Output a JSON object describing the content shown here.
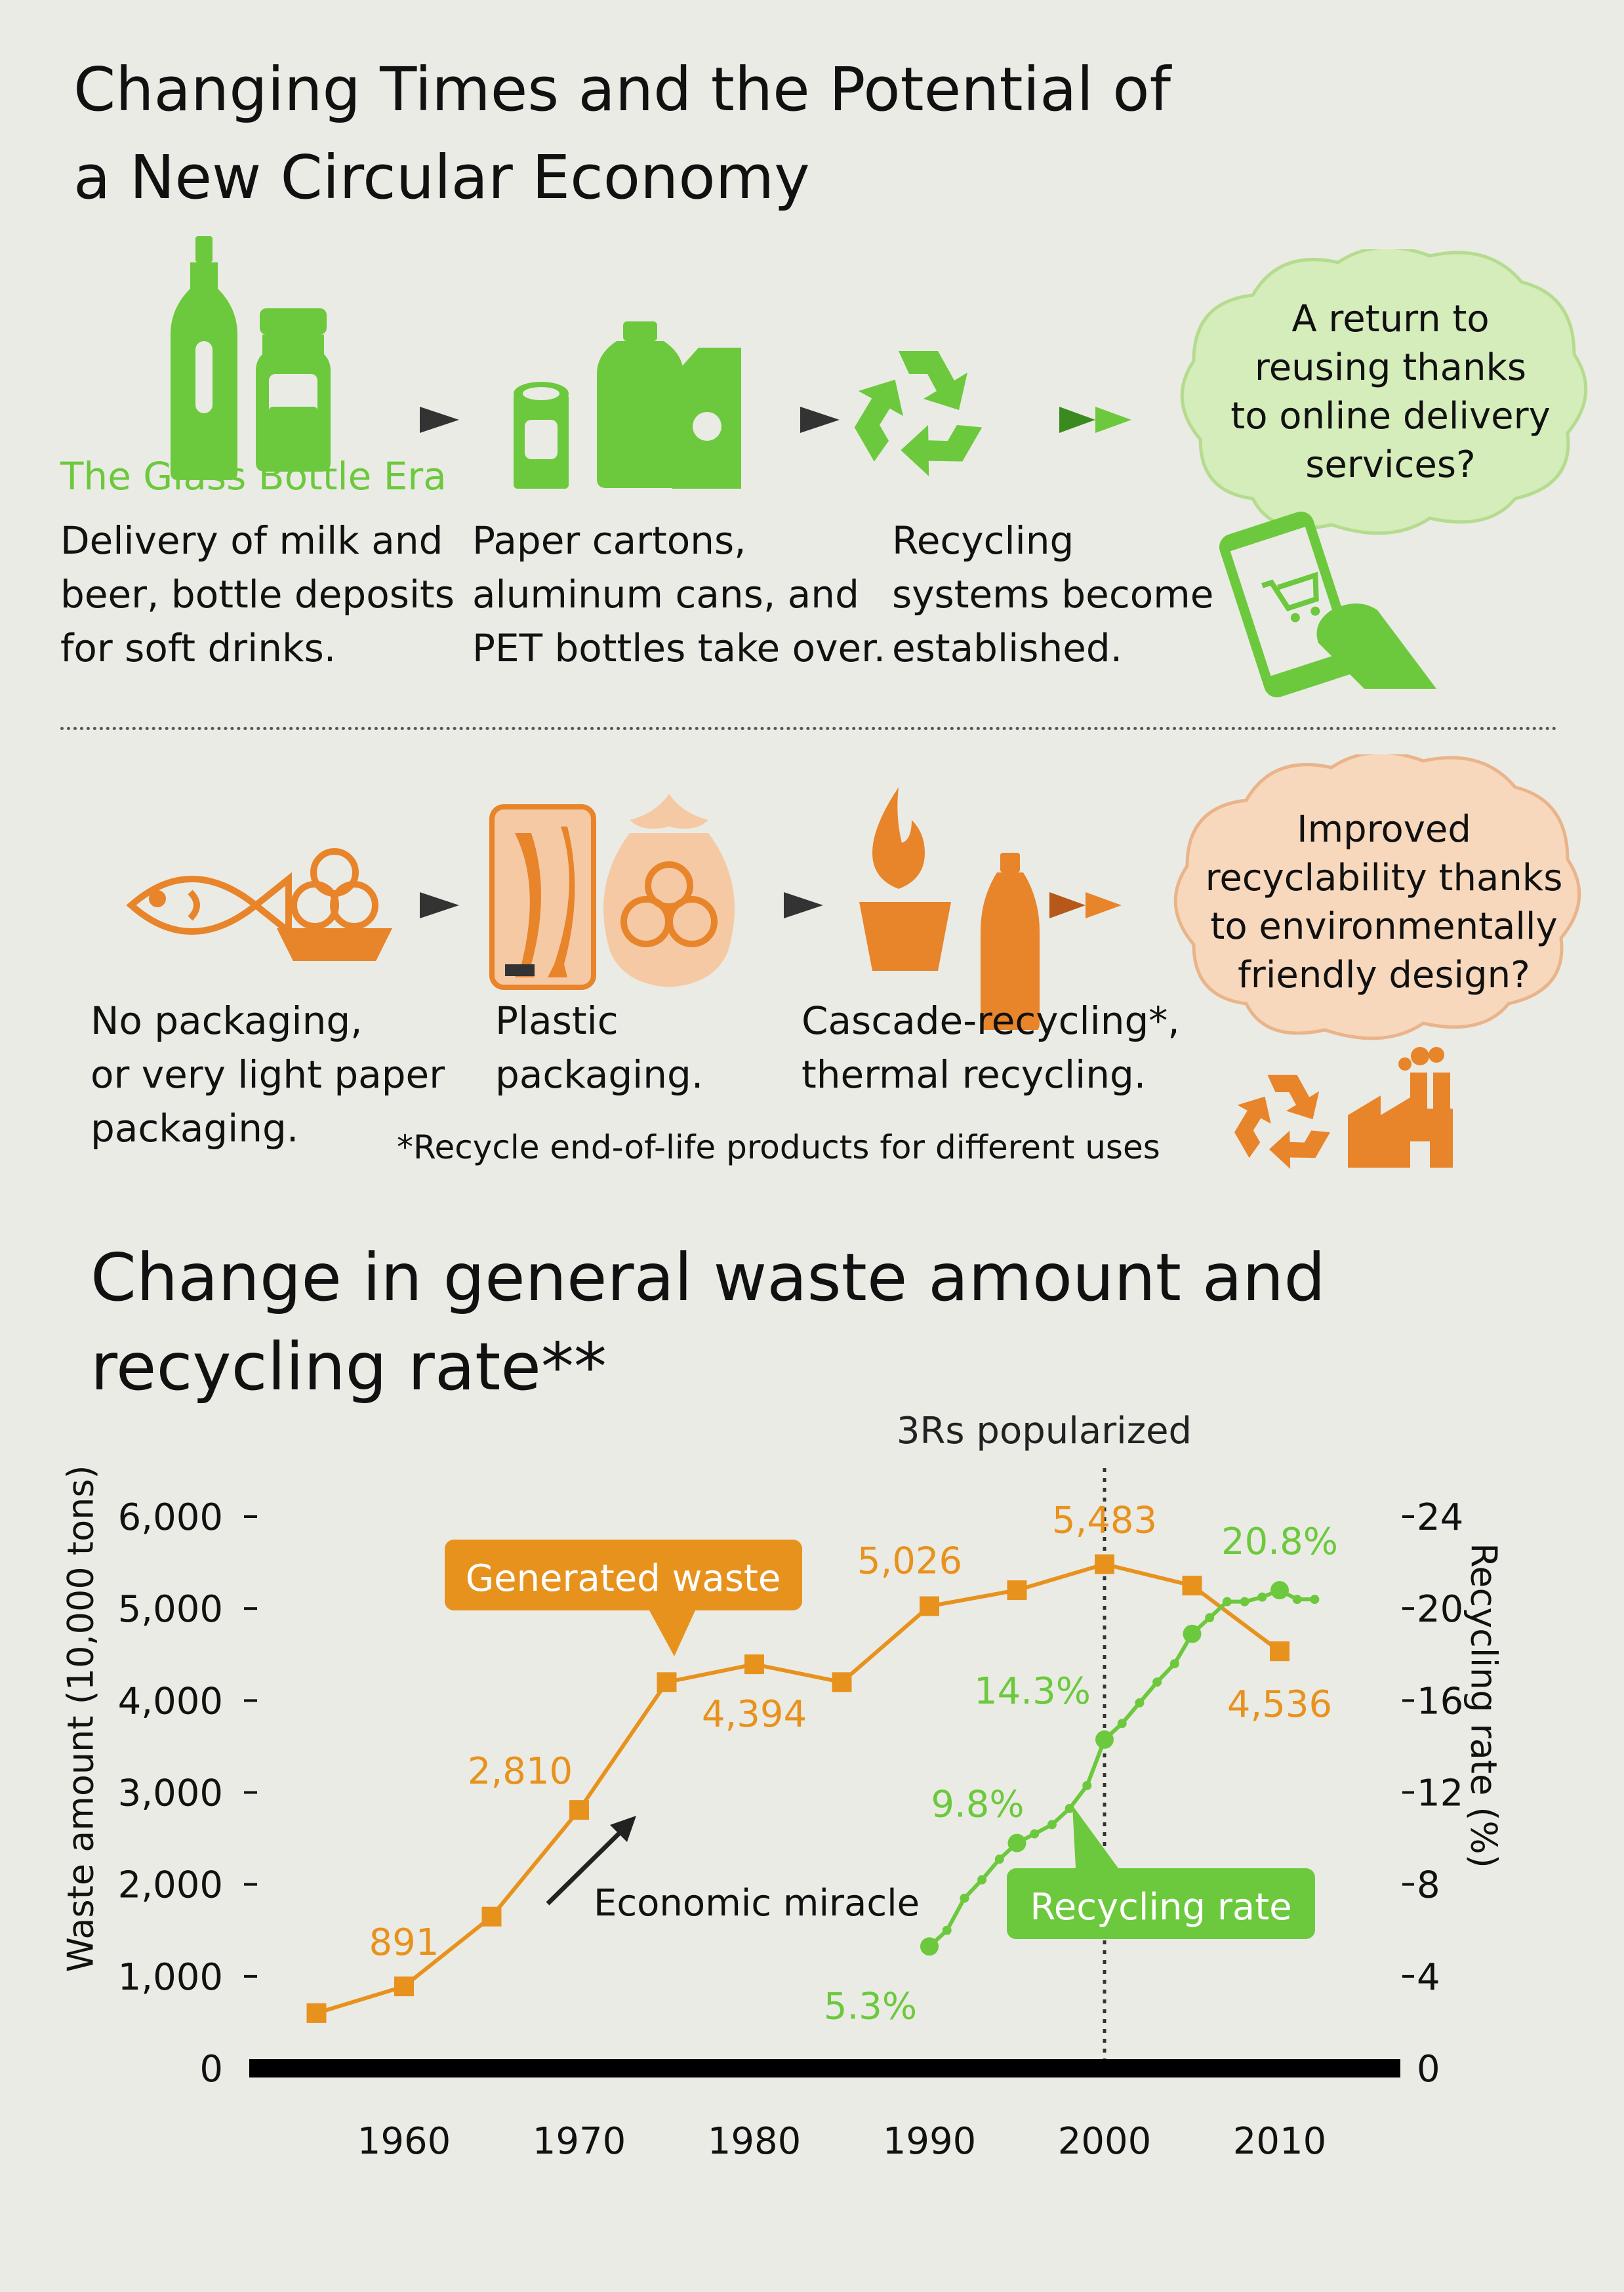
{
  "title": "Changing Times and the Potential of\na New Circular Economy",
  "row1": {
    "era_label": "The Glass Bottle Era",
    "step1": "Delivery of milk and\nbeer, bottle deposits\nfor soft drinks.",
    "step2": "Paper cartons,\naluminum cans, and\nPET bottles take over.",
    "step3": "Recycling\nsystems become\nestablished.",
    "bubble": "A return to\nreusing thanks\nto online delivery\nservices?"
  },
  "row2": {
    "step1": "No packaging,\nor very light paper\npackaging.",
    "step2": "Plastic\npackaging.",
    "step3": "Cascade-recycling*,\nthermal recycling.",
    "footnote": "*Recycle end-of-life products for different uses",
    "bubble": "Improved\nrecyclability thanks\nto environmentally\nfriendly design?"
  },
  "icons": [
    "beer-bottle-icon",
    "milk-bottle-icon",
    "can-icon",
    "pet-bottle-icon",
    "carton-icon",
    "recycle-icon",
    "smartphone-cart-icon",
    "fish-icon",
    "fruit-basket-icon",
    "packaged-fish-icon",
    "fruit-bag-icon",
    "fire-icon",
    "cup-icon",
    "plastic-bottle-icon",
    "factory-icon"
  ],
  "colors": {
    "green": "#6cc93d",
    "orange": "#e8842a",
    "orange_dark": "#de8a1a",
    "background": "#ebebe5"
  },
  "chart_title": "Change in general waste amount and\nrecycling rate**",
  "chart_data": {
    "type": "line",
    "x_ticks": [
      1960,
      1970,
      1980,
      1990,
      2000,
      2010
    ],
    "xlim": [
      1950,
      2017
    ],
    "ylabel_left": "Waste amount (10,000 tons)",
    "ylabel_right": "Recycling rate (%)",
    "y_left_ticks": [
      "0",
      "1,000",
      "2,000",
      "3,000",
      "4,000",
      "5,000",
      "6,000"
    ],
    "y_right_ticks": [
      "0",
      "4",
      "8",
      "12",
      "16",
      "20",
      "24"
    ],
    "ylim_left": [
      0,
      6000
    ],
    "ylim_right": [
      0,
      24
    ],
    "marker_label": "3Rs popularized",
    "marker_x": 2000,
    "annotation": "Economic miracle",
    "series": [
      {
        "name": "Generated waste",
        "axis": "left",
        "color": "#e8921e",
        "points": [
          [
            1955,
            600
          ],
          [
            1960,
            891
          ],
          [
            1965,
            1650
          ],
          [
            1970,
            2810
          ],
          [
            1975,
            4200
          ],
          [
            1980,
            4394
          ],
          [
            1985,
            4200
          ],
          [
            1990,
            5026
          ],
          [
            1995,
            5200
          ],
          [
            2000,
            5483
          ],
          [
            2005,
            5250
          ],
          [
            2010,
            4536
          ]
        ],
        "data_labels": [
          {
            "x": 1960,
            "y": 891,
            "text": "891"
          },
          {
            "x": 1970,
            "y": 2810,
            "text": "2,810"
          },
          {
            "x": 1980,
            "y": 4394,
            "text": "4,394"
          },
          {
            "x": 1990,
            "y": 5026,
            "text": "5,026"
          },
          {
            "x": 2000,
            "y": 5483,
            "text": "5,483"
          },
          {
            "x": 2010,
            "y": 4536,
            "text": "4,536"
          }
        ]
      },
      {
        "name": "Recycling rate",
        "axis": "right",
        "color": "#6cc93d",
        "points": [
          [
            1990,
            5.3
          ],
          [
            1991,
            6.0
          ],
          [
            1992,
            7.4
          ],
          [
            1993,
            8.2
          ],
          [
            1994,
            9.1
          ],
          [
            1995,
            9.8
          ],
          [
            1996,
            10.2
          ],
          [
            1997,
            10.6
          ],
          [
            1998,
            11.3
          ],
          [
            1999,
            12.3
          ],
          [
            2000,
            14.3
          ],
          [
            2001,
            15.0
          ],
          [
            2002,
            15.9
          ],
          [
            2003,
            16.8
          ],
          [
            2004,
            17.6
          ],
          [
            2005,
            18.9
          ],
          [
            2006,
            19.6
          ],
          [
            2007,
            20.3
          ],
          [
            2008,
            20.3
          ],
          [
            2009,
            20.5
          ],
          [
            2010,
            20.8
          ],
          [
            2011,
            20.4
          ],
          [
            2012,
            20.4
          ]
        ],
        "major_points": [
          [
            1990,
            5.3
          ],
          [
            1995,
            9.8
          ],
          [
            2000,
            14.3
          ],
          [
            2005,
            18.9
          ],
          [
            2010,
            20.8
          ]
        ],
        "data_labels": [
          {
            "x": 1990,
            "y": 5.3,
            "text": "5.3%"
          },
          {
            "x": 1995,
            "y": 9.8,
            "text": "9.8%"
          },
          {
            "x": 2000,
            "y": 14.3,
            "text": "14.3%"
          },
          {
            "x": 2010,
            "y": 20.8,
            "text": "20.8%"
          }
        ]
      }
    ]
  }
}
